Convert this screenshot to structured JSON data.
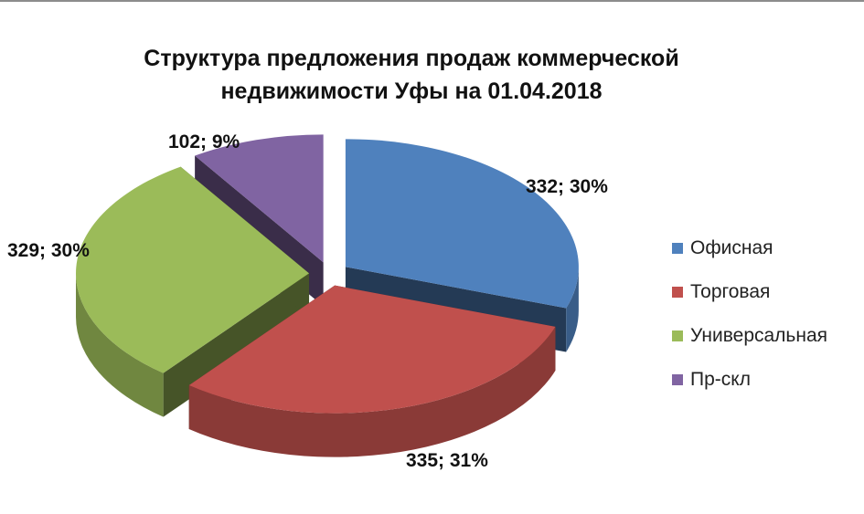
{
  "chart_data": {
    "type": "pie",
    "title": "Структура предложения продаж коммерческой недвижимости Уфы на 01.04.2018",
    "title_lines": [
      "Структура предложения продаж коммерческой",
      "недвижимости Уфы на 01.04.2018"
    ],
    "categories": [
      "Офисная",
      "Торговая",
      "Универсальная",
      "Пр-скл"
    ],
    "values": [
      332,
      335,
      329,
      102
    ],
    "percent_labels": [
      "30%",
      "31%",
      "30%",
      "9%"
    ],
    "data_labels": [
      "332; 30%",
      "335; 31%",
      "329; 30%",
      "102; 9%"
    ],
    "colors": [
      "#4f81bd",
      "#c0504d",
      "#9bbb59",
      "#8064a2"
    ],
    "legend_position": "right",
    "style": "3d-exploded"
  }
}
